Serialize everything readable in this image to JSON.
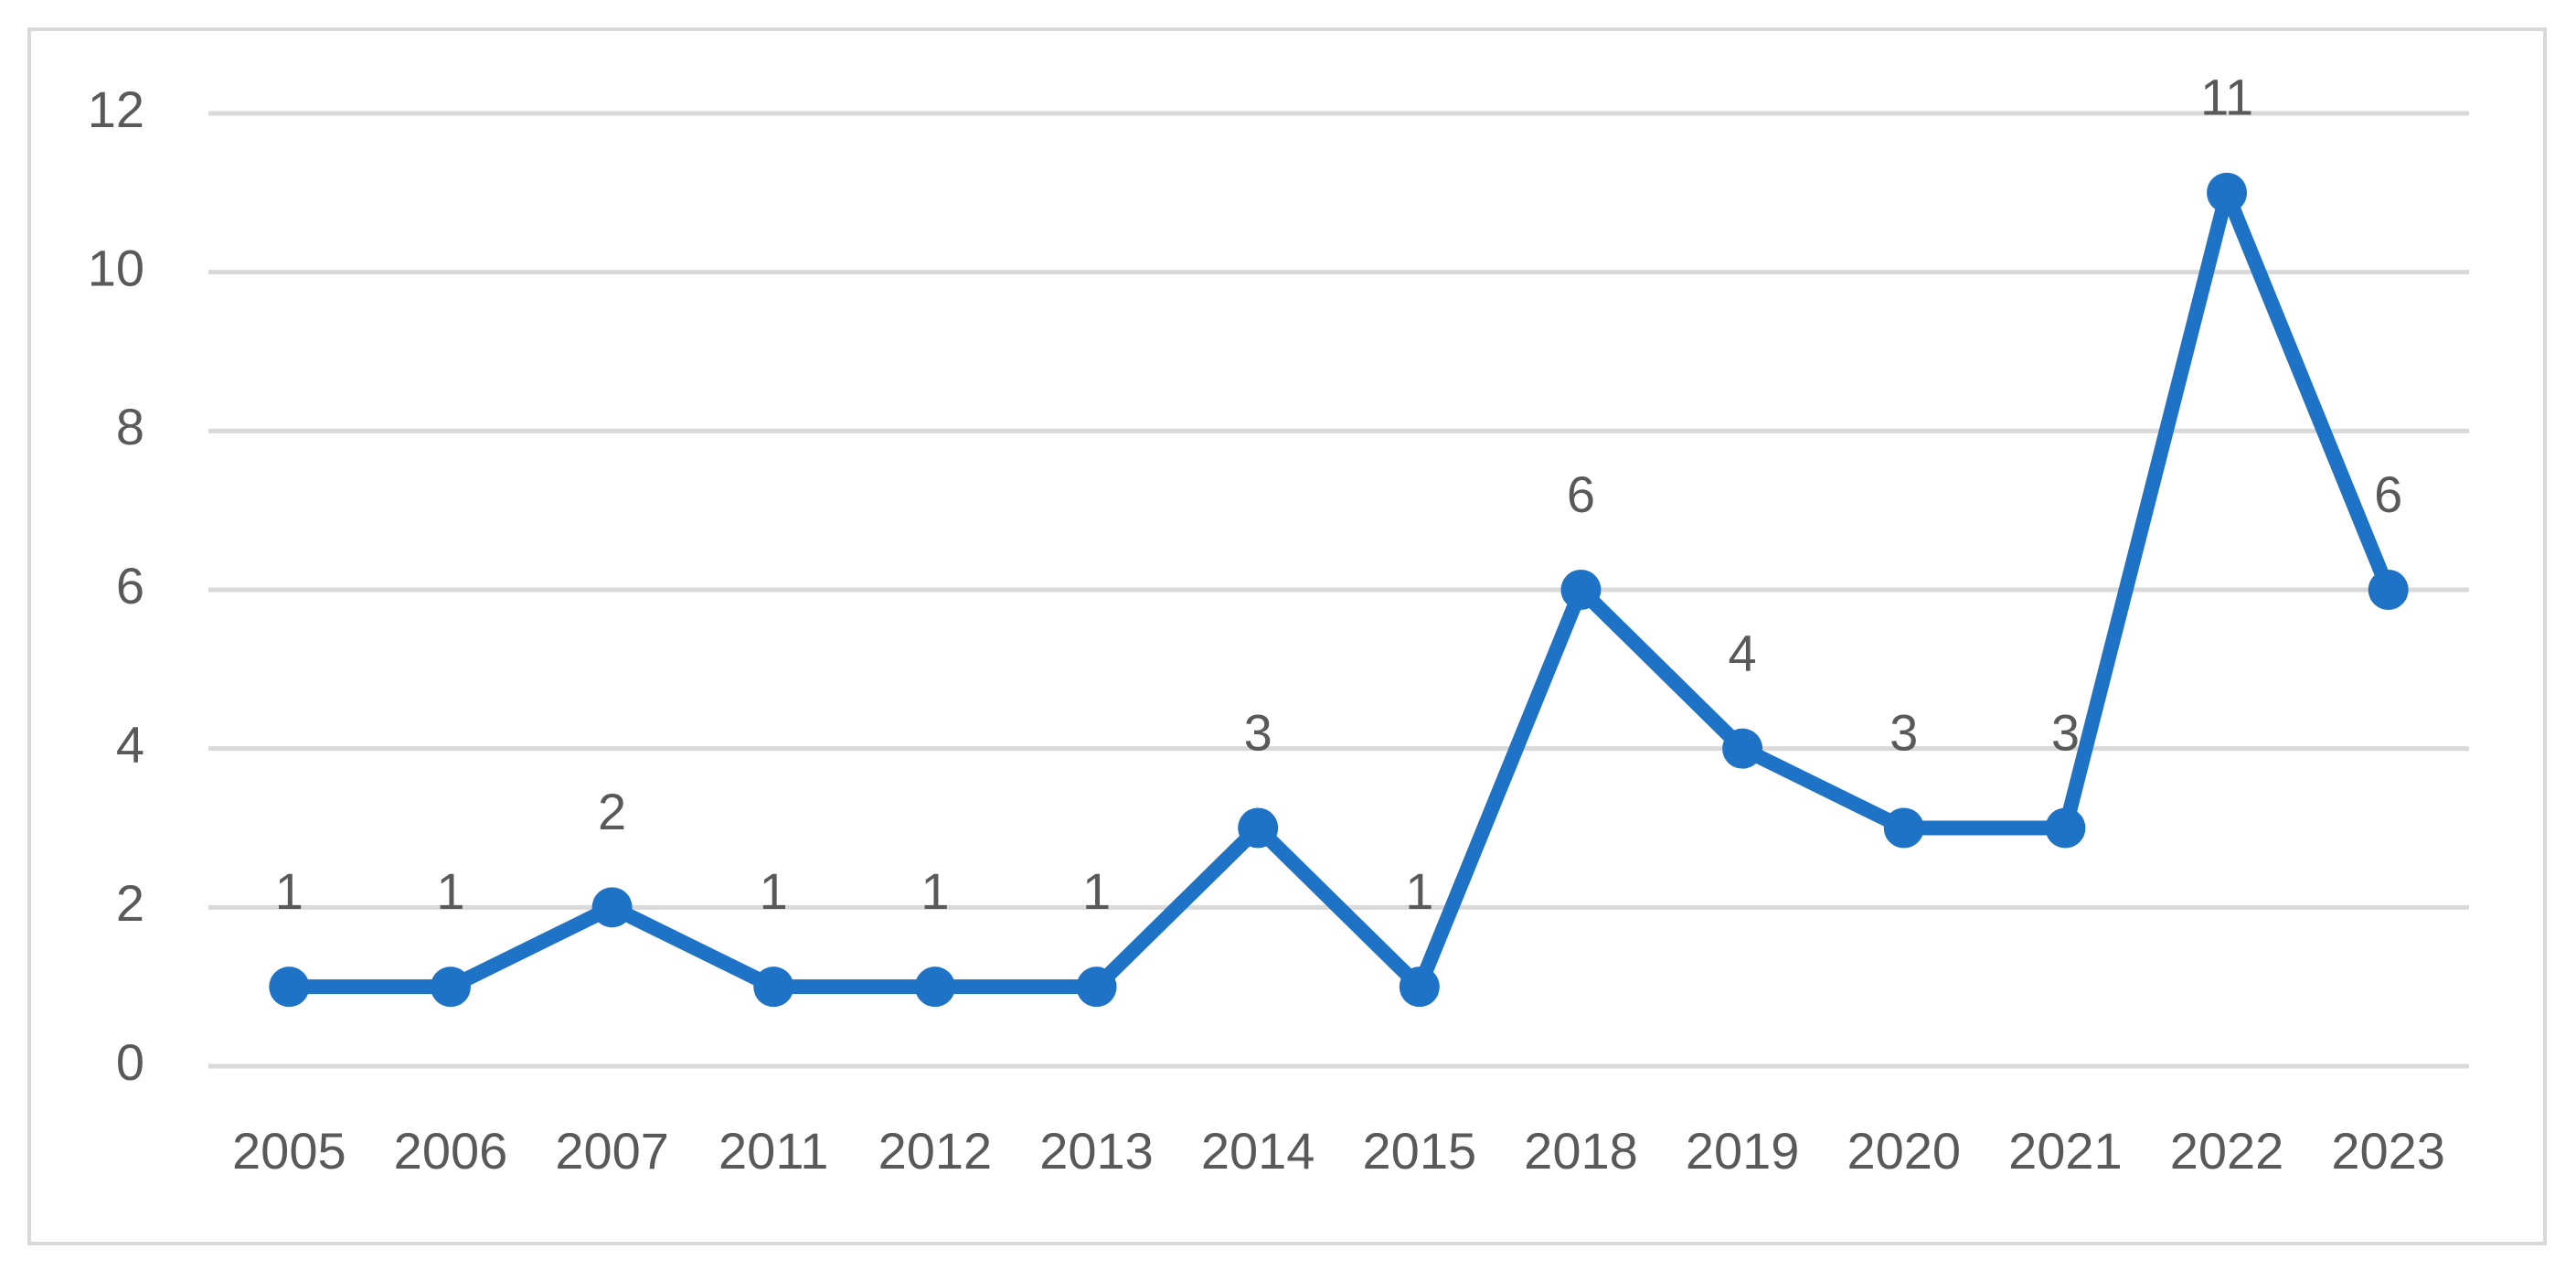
{
  "chart_data": {
    "type": "line",
    "categories": [
      "2005",
      "2006",
      "2007",
      "2011",
      "2012",
      "2013",
      "2014",
      "2015",
      "2018",
      "2019",
      "2020",
      "2021",
      "2022",
      "2023"
    ],
    "series": [
      {
        "color": "#1f73c6",
        "values": [
          1,
          1,
          2,
          1,
          1,
          1,
          3,
          1,
          6,
          4,
          3,
          3,
          11,
          6
        ]
      }
    ],
    "ylim": [
      0,
      12
    ],
    "yticks": [
      0,
      2,
      4,
      6,
      8,
      10,
      12
    ],
    "grid": true,
    "data_labels": true
  }
}
